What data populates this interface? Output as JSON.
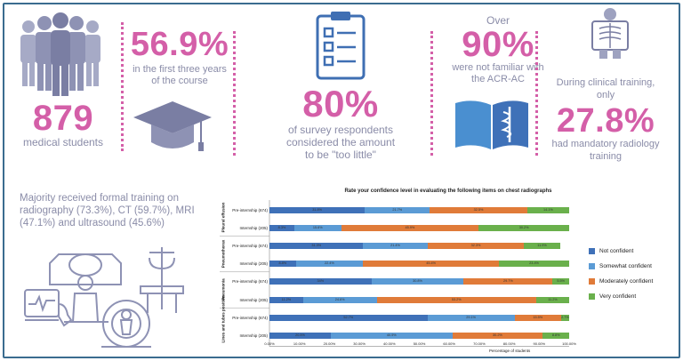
{
  "stats": {
    "students_value": "879",
    "students_label": "medical students",
    "first_years_value": "56.9%",
    "first_years_label": "in the first three years of the course",
    "too_little_value": "80%",
    "too_little_label": "of survey respondents considered the amount to be \"too little\"",
    "acr_prefix": "Over",
    "acr_value": "90%",
    "acr_label": "were not familiar with the ACR-AC",
    "mandatory_prefix": "During clinical training, only",
    "mandatory_value": "27.8%",
    "mandatory_label": "had mandatory radiology training",
    "formal_training": "Majority received formal training on radiography (73.3%), CT (59.7%), MRI (47.1%) and ultrasound (45.6%)"
  },
  "colors": {
    "pink": "#d45fa8",
    "not_confident": "#3f71b8",
    "somewhat_confident": "#5b9bd5",
    "moderately_confident": "#e07b39",
    "very_confident": "#6ab04c"
  },
  "icons": [
    "people-icon",
    "graduation-cap-icon",
    "checklist-icon",
    "medical-book-icon",
    "xray-person-icon",
    "imaging-equipment-icon"
  ],
  "chart_data": {
    "type": "bar",
    "stacked": true,
    "orientation": "horizontal",
    "title": "Rate your confidence level in evaluating the following items on chest radiographs",
    "xlabel": "Percentage of students",
    "xlim": [
      0,
      100
    ],
    "x_ticks": [
      "0.00%",
      "10.00%",
      "20.00%",
      "30.00%",
      "40.00%",
      "50.00%",
      "60.00%",
      "70.00%",
      "80.00%",
      "90.00%",
      "100.00%"
    ],
    "groups": [
      "Pleural effusion",
      "Pneumothorax",
      "Pneumonia",
      "Lines and tubes position"
    ],
    "categories": [
      "Pre-internship (674)",
      "Internship (205)",
      "Pre-internship (674)",
      "Internship (205)",
      "Pre-internship (674)",
      "Internship (205)",
      "Pre-internship (674)",
      "Internship (205)"
    ],
    "series": [
      {
        "name": "Not confident",
        "values": [
          31.8,
          8.3,
          31.3,
          8.8,
          34,
          11.2,
          52.7,
          20.5
        ],
        "labels": [
          "31.8%",
          "8.3%",
          "31.3%",
          "8.8%",
          "34%",
          "11.2%",
          "52.7%",
          "20.5%"
        ]
      },
      {
        "name": "Somewhat confident",
        "values": [
          21.7,
          15.6,
          21.4,
          22.4,
          30.8,
          24.6,
          29.1,
          40.5
        ],
        "labels": [
          "21.7%",
          "15.6%",
          "21.4%",
          "22.4%",
          "30.8%",
          "24.6%",
          "29.1%",
          "40.5%"
        ]
      },
      {
        "name": "Moderately confident",
        "values": [
          32.5,
          45.9,
          32.3,
          45.4,
          29.7,
          53.2,
          15.5,
          30.2
        ],
        "labels": [
          "32.5%",
          "45.9%",
          "32.3%",
          "45.4%",
          "29.7%",
          "53.2%",
          "15.5%",
          "30.2%"
        ]
      },
      {
        "name": "Very confident",
        "values": [
          14.1,
          30.2,
          11.9,
          23.4,
          5.5,
          11.2,
          2.7,
          8.8
        ],
        "labels": [
          "14.1%",
          "30.2%",
          "11.9%",
          "23.4%",
          "5.5%",
          "11.2%",
          "2.7%",
          "8.8%"
        ]
      }
    ],
    "legend": [
      "Not confident",
      "Somewhat confident",
      "Moderately confident",
      "Very confident"
    ]
  }
}
